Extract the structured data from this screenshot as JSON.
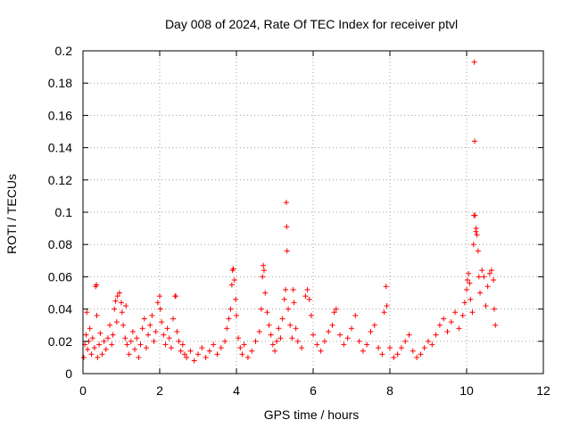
{
  "chart_data": {
    "type": "scatter",
    "title": "Day 008 of 2024, Rate Of TEC Index for receiver ptvl",
    "xlabel": "GPS time / hours",
    "ylabel": "ROTI / TECUs",
    "xlim": [
      0,
      12
    ],
    "ylim": [
      0,
      0.2
    ],
    "xticks": [
      0,
      2,
      4,
      6,
      8,
      10,
      12
    ],
    "xtick_labels": [
      "0",
      "2",
      "4",
      "6",
      "8",
      "10",
      "12"
    ],
    "yticks": [
      0,
      0.02,
      0.04,
      0.06,
      0.08,
      0.1,
      0.12,
      0.14,
      0.16,
      0.18,
      0.2
    ],
    "ytick_labels": [
      "0",
      "0.02",
      "0.04",
      "0.06",
      "0.08",
      "0.1",
      "0.12",
      "0.14",
      "0.16",
      "0.18",
      "0.2"
    ],
    "grid": true,
    "marker": "+",
    "color": "#ff0000",
    "series": [
      {
        "name": "ROTI",
        "points": [
          [
            0.02,
            0.01
          ],
          [
            0.05,
            0.018
          ],
          [
            0.08,
            0.024
          ],
          [
            0.1,
            0.038
          ],
          [
            0.12,
            0.015
          ],
          [
            0.15,
            0.02
          ],
          [
            0.18,
            0.028
          ],
          [
            0.22,
            0.012
          ],
          [
            0.25,
            0.022
          ],
          [
            0.3,
            0.016
          ],
          [
            0.33,
            0.054
          ],
          [
            0.35,
            0.055
          ],
          [
            0.36,
            0.036
          ],
          [
            0.38,
            0.01
          ],
          [
            0.42,
            0.018
          ],
          [
            0.45,
            0.025
          ],
          [
            0.5,
            0.012
          ],
          [
            0.55,
            0.02
          ],
          [
            0.6,
            0.015
          ],
          [
            0.65,
            0.022
          ],
          [
            0.7,
            0.03
          ],
          [
            0.75,
            0.018
          ],
          [
            0.78,
            0.024
          ],
          [
            0.82,
            0.04
          ],
          [
            0.85,
            0.045
          ],
          [
            0.88,
            0.032
          ],
          [
            0.9,
            0.048
          ],
          [
            0.95,
            0.05
          ],
          [
            1.0,
            0.044
          ],
          [
            1.02,
            0.038
          ],
          [
            1.05,
            0.03
          ],
          [
            1.1,
            0.022
          ],
          [
            1.12,
            0.042
          ],
          [
            1.15,
            0.018
          ],
          [
            1.2,
            0.012
          ],
          [
            1.25,
            0.02
          ],
          [
            1.3,
            0.026
          ],
          [
            1.35,
            0.015
          ],
          [
            1.4,
            0.022
          ],
          [
            1.45,
            0.01
          ],
          [
            1.5,
            0.018
          ],
          [
            1.55,
            0.028
          ],
          [
            1.6,
            0.034
          ],
          [
            1.65,
            0.016
          ],
          [
            1.7,
            0.024
          ],
          [
            1.75,
            0.03
          ],
          [
            1.8,
            0.036
          ],
          [
            1.85,
            0.02
          ],
          [
            1.9,
            0.026
          ],
          [
            1.95,
            0.044
          ],
          [
            2.0,
            0.048
          ],
          [
            2.02,
            0.04
          ],
          [
            2.05,
            0.032
          ],
          [
            2.1,
            0.024
          ],
          [
            2.15,
            0.018
          ],
          [
            2.2,
            0.028
          ],
          [
            2.25,
            0.022
          ],
          [
            2.3,
            0.016
          ],
          [
            2.35,
            0.034
          ],
          [
            2.4,
            0.048
          ],
          [
            2.42,
            0.048
          ],
          [
            2.45,
            0.026
          ],
          [
            2.5,
            0.02
          ],
          [
            2.55,
            0.014
          ],
          [
            2.6,
            0.018
          ],
          [
            2.65,
            0.012
          ],
          [
            2.7,
            0.01
          ],
          [
            2.8,
            0.014
          ],
          [
            2.9,
            0.008
          ],
          [
            3.0,
            0.012
          ],
          [
            3.1,
            0.016
          ],
          [
            3.2,
            0.01
          ],
          [
            3.3,
            0.014
          ],
          [
            3.4,
            0.018
          ],
          [
            3.5,
            0.012
          ],
          [
            3.6,
            0.016
          ],
          [
            3.7,
            0.02
          ],
          [
            3.75,
            0.028
          ],
          [
            3.8,
            0.034
          ],
          [
            3.85,
            0.04
          ],
          [
            3.88,
            0.055
          ],
          [
            3.9,
            0.064
          ],
          [
            3.92,
            0.065
          ],
          [
            3.95,
            0.058
          ],
          [
            3.98,
            0.046
          ],
          [
            4.0,
            0.036
          ],
          [
            4.05,
            0.022
          ],
          [
            4.1,
            0.016
          ],
          [
            4.15,
            0.012
          ],
          [
            4.2,
            0.018
          ],
          [
            4.3,
            0.01
          ],
          [
            4.4,
            0.014
          ],
          [
            4.5,
            0.02
          ],
          [
            4.6,
            0.026
          ],
          [
            4.65,
            0.04
          ],
          [
            4.68,
            0.06
          ],
          [
            4.7,
            0.067
          ],
          [
            4.72,
            0.064
          ],
          [
            4.75,
            0.05
          ],
          [
            4.8,
            0.038
          ],
          [
            4.85,
            0.03
          ],
          [
            4.9,
            0.024
          ],
          [
            4.95,
            0.018
          ],
          [
            5.0,
            0.014
          ],
          [
            5.05,
            0.02
          ],
          [
            5.1,
            0.028
          ],
          [
            5.15,
            0.022
          ],
          [
            5.2,
            0.034
          ],
          [
            5.25,
            0.046
          ],
          [
            5.28,
            0.052
          ],
          [
            5.3,
            0.106
          ],
          [
            5.31,
            0.091
          ],
          [
            5.32,
            0.076
          ],
          [
            5.35,
            0.04
          ],
          [
            5.4,
            0.03
          ],
          [
            5.45,
            0.022
          ],
          [
            5.48,
            0.052
          ],
          [
            5.5,
            0.044
          ],
          [
            5.55,
            0.028
          ],
          [
            5.6,
            0.02
          ],
          [
            5.7,
            0.016
          ],
          [
            5.8,
            0.048
          ],
          [
            5.85,
            0.052
          ],
          [
            5.9,
            0.046
          ],
          [
            5.95,
            0.036
          ],
          [
            6.0,
            0.024
          ],
          [
            6.1,
            0.018
          ],
          [
            6.2,
            0.014
          ],
          [
            6.3,
            0.02
          ],
          [
            6.4,
            0.026
          ],
          [
            6.5,
            0.03
          ],
          [
            6.55,
            0.038
          ],
          [
            6.6,
            0.04
          ],
          [
            6.7,
            0.024
          ],
          [
            6.8,
            0.018
          ],
          [
            6.9,
            0.022
          ],
          [
            7.0,
            0.028
          ],
          [
            7.1,
            0.036
          ],
          [
            7.2,
            0.02
          ],
          [
            7.3,
            0.014
          ],
          [
            7.4,
            0.018
          ],
          [
            7.5,
            0.026
          ],
          [
            7.6,
            0.03
          ],
          [
            7.7,
            0.016
          ],
          [
            7.8,
            0.012
          ],
          [
            7.85,
            0.038
          ],
          [
            7.9,
            0.054
          ],
          [
            7.92,
            0.042
          ],
          [
            8.0,
            0.016
          ],
          [
            8.1,
            0.01
          ],
          [
            8.2,
            0.012
          ],
          [
            8.3,
            0.016
          ],
          [
            8.4,
            0.02
          ],
          [
            8.5,
            0.024
          ],
          [
            8.6,
            0.014
          ],
          [
            8.7,
            0.01
          ],
          [
            8.8,
            0.012
          ],
          [
            8.9,
            0.016
          ],
          [
            9.0,
            0.02
          ],
          [
            9.1,
            0.018
          ],
          [
            9.2,
            0.024
          ],
          [
            9.3,
            0.03
          ],
          [
            9.4,
            0.034
          ],
          [
            9.5,
            0.026
          ],
          [
            9.6,
            0.032
          ],
          [
            9.7,
            0.038
          ],
          [
            9.8,
            0.028
          ],
          [
            9.9,
            0.036
          ],
          [
            9.95,
            0.044
          ],
          [
            10.0,
            0.052
          ],
          [
            10.02,
            0.058
          ],
          [
            10.05,
            0.062
          ],
          [
            10.08,
            0.056
          ],
          [
            10.1,
            0.046
          ],
          [
            10.15,
            0.038
          ],
          [
            10.18,
            0.08
          ],
          [
            10.19,
            0.098
          ],
          [
            10.2,
            0.193
          ],
          [
            10.21,
            0.144
          ],
          [
            10.22,
            0.098
          ],
          [
            10.24,
            0.088
          ],
          [
            10.25,
            0.09
          ],
          [
            10.27,
            0.086
          ],
          [
            10.3,
            0.076
          ],
          [
            10.32,
            0.06
          ],
          [
            10.35,
            0.05
          ],
          [
            10.4,
            0.064
          ],
          [
            10.45,
            0.06
          ],
          [
            10.5,
            0.042
          ],
          [
            10.55,
            0.054
          ],
          [
            10.6,
            0.062
          ],
          [
            10.65,
            0.064
          ],
          [
            10.7,
            0.058
          ],
          [
            10.72,
            0.04
          ],
          [
            10.75,
            0.03
          ]
        ]
      }
    ]
  }
}
